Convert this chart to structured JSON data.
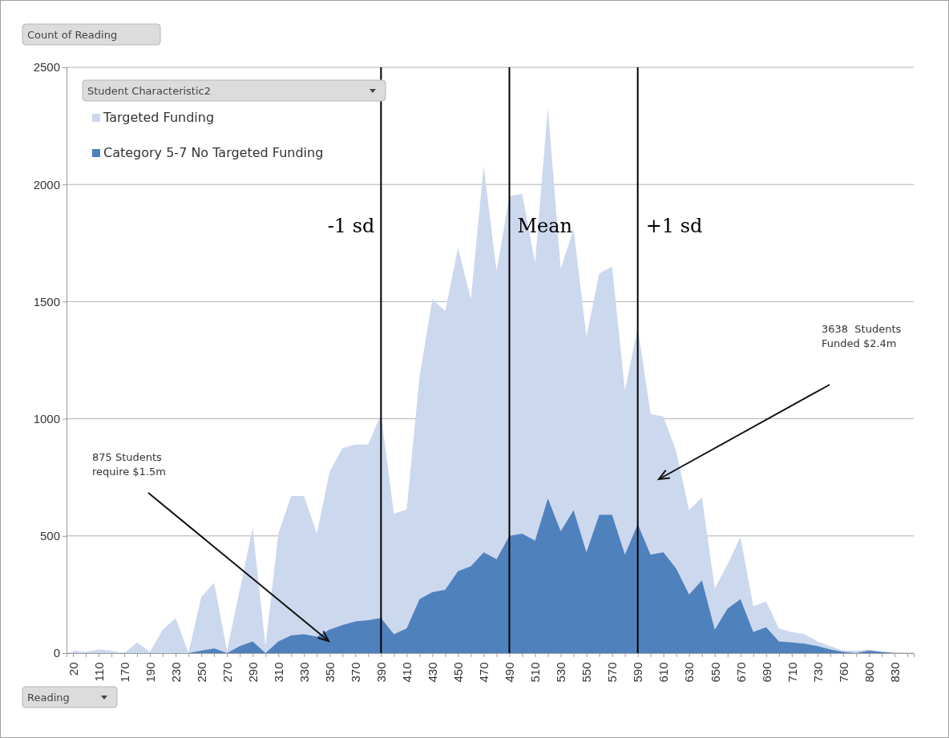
{
  "chart_data": {
    "type": "area",
    "ylabel": "Count of Reading",
    "xlabel": "Reading",
    "legend_title": "Student Characteristic2",
    "legend": "top left",
    "grid": "y",
    "categories": [
      "20",
      null,
      "110",
      null,
      "170",
      null,
      "190",
      null,
      "230",
      null,
      "250",
      null,
      "270",
      null,
      "290",
      null,
      "310",
      null,
      "330",
      null,
      "350",
      null,
      "370",
      null,
      "390",
      null,
      "410",
      null,
      "430",
      null,
      "450",
      null,
      "470",
      null,
      "490",
      null,
      "510",
      null,
      "530",
      null,
      "550",
      null,
      "570",
      null,
      "590",
      null,
      "610",
      null,
      "630",
      null,
      "650",
      null,
      "670",
      null,
      "690",
      null,
      "710",
      null,
      "730",
      null,
      "760",
      null,
      "800",
      null,
      "830",
      null
    ],
    "ylim": [
      0,
      2500
    ],
    "yticks": [
      0,
      500,
      1000,
      1500,
      2000,
      2500
    ],
    "series": [
      {
        "name": "Targeted Funding",
        "color": "#ccd8ee",
        "values": [
          10,
          5,
          15,
          10,
          0,
          45,
          5,
          100,
          150,
          0,
          240,
          300,
          10,
          270,
          535,
          30,
          510,
          670,
          670,
          510,
          775,
          875,
          890,
          890,
          1020,
          595,
          612,
          1180,
          1510,
          1460,
          1730,
          1510,
          2080,
          1630,
          1950,
          1960,
          1665,
          2330,
          1640,
          1810,
          1350,
          1620,
          1650,
          1120,
          1390,
          1020,
          1010,
          860,
          610,
          665,
          275,
          380,
          495,
          200,
          220,
          105,
          90,
          80,
          50,
          30,
          10,
          10,
          15,
          5,
          5,
          0
        ]
      },
      {
        "name": "Category 5-7 No Targeted Funding",
        "color": "#4f81bd",
        "values": [
          0,
          0,
          0,
          0,
          0,
          0,
          0,
          0,
          0,
          0,
          10,
          20,
          0,
          30,
          50,
          0,
          50,
          75,
          80,
          70,
          100,
          120,
          135,
          140,
          150,
          80,
          105,
          230,
          260,
          270,
          350,
          370,
          430,
          400,
          500,
          510,
          480,
          660,
          520,
          610,
          430,
          590,
          590,
          420,
          550,
          420,
          430,
          360,
          250,
          310,
          100,
          190,
          230,
          90,
          110,
          50,
          45,
          40,
          30,
          15,
          5,
          0,
          10,
          5,
          0,
          0
        ]
      }
    ],
    "ref_lines": [
      {
        "axis": "x",
        "value": "390",
        "label": "-1 sd",
        "color": "#000000"
      },
      {
        "axis": "x",
        "value": "490",
        "label": "Mean",
        "color": "#000000"
      },
      {
        "axis": "x",
        "value": "590",
        "label": "+1 sd",
        "color": "#000000"
      }
    ],
    "annotations": [
      "875 Students\nrequire $1.5m",
      "3638  Students\nFunded $2.4m"
    ]
  }
}
